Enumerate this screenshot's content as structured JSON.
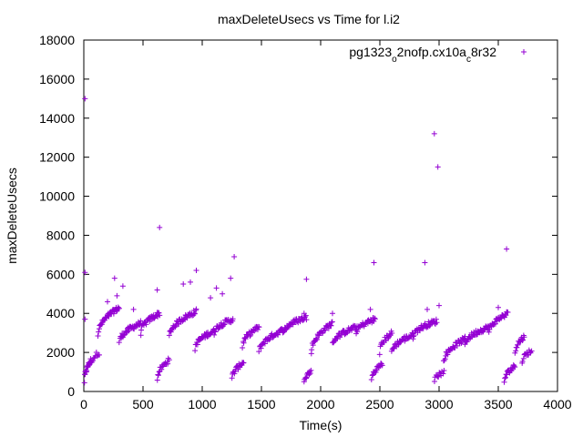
{
  "chart_data": {
    "type": "scatter",
    "title": "maxDeleteUsecs vs Time for l.i2",
    "xlabel": "Time(s)",
    "ylabel": "maxDeleteUsecs",
    "xlim": [
      0,
      4000
    ],
    "ylim": [
      0,
      18000
    ],
    "xticks": [
      "0",
      "500",
      "1000",
      "1500",
      "2000",
      "2500",
      "3000",
      "3500",
      "4000"
    ],
    "yticks": [
      "0",
      "2000",
      "4000",
      "6000",
      "8000",
      "10000",
      "12000",
      "14000",
      "16000",
      "18000"
    ],
    "legend_position": "top-right",
    "grid": false,
    "marker": "plus",
    "color": "#9400d3",
    "series": [
      {
        "name": "pg1323o2nofp.cx10ac8r32",
        "legend_parts": [
          {
            "t": "pg1323",
            "sub": false
          },
          {
            "t": "o",
            "sub": true
          },
          {
            "t": "2nofp.cx10a",
            "sub": false
          },
          {
            "t": "c",
            "sub": true
          },
          {
            "t": "8r32",
            "sub": false
          }
        ],
        "segments": [
          {
            "x0": 5,
            "x1": 60,
            "y0": 500,
            "y1": 1600,
            "n": 22
          },
          {
            "x0": 60,
            "x1": 130,
            "y0": 1400,
            "y1": 2000,
            "n": 10
          },
          {
            "x0": 120,
            "x1": 300,
            "y0": 2900,
            "y1": 4300,
            "n": 40
          },
          {
            "x0": 300,
            "x1": 480,
            "y0": 2500,
            "y1": 3500,
            "n": 36
          },
          {
            "x0": 480,
            "x1": 640,
            "y0": 3000,
            "y1": 4000,
            "n": 32
          },
          {
            "x0": 620,
            "x1": 720,
            "y0": 600,
            "y1": 1600,
            "n": 20
          },
          {
            "x0": 720,
            "x1": 950,
            "y0": 2800,
            "y1": 4100,
            "n": 44
          },
          {
            "x0": 940,
            "x1": 1100,
            "y0": 2200,
            "y1": 3100,
            "n": 32
          },
          {
            "x0": 1100,
            "x1": 1260,
            "y0": 3000,
            "y1": 3700,
            "n": 30
          },
          {
            "x0": 1250,
            "x1": 1350,
            "y0": 600,
            "y1": 1500,
            "n": 20
          },
          {
            "x0": 1340,
            "x1": 1480,
            "y0": 2300,
            "y1": 3300,
            "n": 26
          },
          {
            "x0": 1480,
            "x1": 1700,
            "y0": 2000,
            "y1": 3200,
            "n": 42
          },
          {
            "x0": 1700,
            "x1": 1880,
            "y0": 3100,
            "y1": 3800,
            "n": 34
          },
          {
            "x0": 1860,
            "x1": 1920,
            "y0": 600,
            "y1": 1000,
            "n": 12
          },
          {
            "x0": 1920,
            "x1": 2100,
            "y0": 2000,
            "y1": 3500,
            "n": 34
          },
          {
            "x0": 2100,
            "x1": 2300,
            "y0": 2400,
            "y1": 3300,
            "n": 38
          },
          {
            "x0": 2300,
            "x1": 2460,
            "y0": 3000,
            "y1": 3700,
            "n": 30
          },
          {
            "x0": 2430,
            "x1": 2520,
            "y0": 600,
            "y1": 1400,
            "n": 18
          },
          {
            "x0": 2500,
            "x1": 2600,
            "y0": 2000,
            "y1": 3000,
            "n": 20
          },
          {
            "x0": 2600,
            "x1": 2780,
            "y0": 2000,
            "y1": 2900,
            "n": 34
          },
          {
            "x0": 2780,
            "x1": 2980,
            "y0": 2800,
            "y1": 3600,
            "n": 38
          },
          {
            "x0": 2960,
            "x1": 3040,
            "y0": 600,
            "y1": 1000,
            "n": 12
          },
          {
            "x0": 3040,
            "x1": 3220,
            "y0": 1500,
            "y1": 2700,
            "n": 34
          },
          {
            "x0": 3220,
            "x1": 3420,
            "y0": 2400,
            "y1": 3300,
            "n": 38
          },
          {
            "x0": 3420,
            "x1": 3580,
            "y0": 3000,
            "y1": 4000,
            "n": 30
          },
          {
            "x0": 3550,
            "x1": 3640,
            "y0": 500,
            "y1": 1300,
            "n": 18
          },
          {
            "x0": 3640,
            "x1": 3720,
            "y0": 2000,
            "y1": 2800,
            "n": 16
          },
          {
            "x0": 3700,
            "x1": 3780,
            "y0": 1500,
            "y1": 2100,
            "n": 14
          }
        ],
        "outliers": [
          [
            10,
            15000
          ],
          [
            10,
            6100
          ],
          [
            10,
            3700
          ],
          [
            260,
            5800
          ],
          [
            330,
            5400
          ],
          [
            420,
            4200
          ],
          [
            620,
            5200
          ],
          [
            640,
            8400
          ],
          [
            840,
            5500
          ],
          [
            950,
            6200
          ],
          [
            900,
            5600
          ],
          [
            1070,
            4800
          ],
          [
            1120,
            5300
          ],
          [
            1170,
            5000
          ],
          [
            1270,
            6900
          ],
          [
            1240,
            5800
          ],
          [
            1880,
            5750
          ],
          [
            2450,
            6600
          ],
          [
            2420,
            4200
          ],
          [
            2880,
            6600
          ],
          [
            2960,
            13200
          ],
          [
            2990,
            11500
          ],
          [
            3000,
            4400
          ],
          [
            3570,
            7300
          ],
          [
            3500,
            4300
          ],
          [
            200,
            4600
          ],
          [
            280,
            4900
          ],
          [
            1860,
            4000
          ],
          [
            2100,
            4000
          ],
          [
            2900,
            4200
          ]
        ]
      }
    ]
  }
}
